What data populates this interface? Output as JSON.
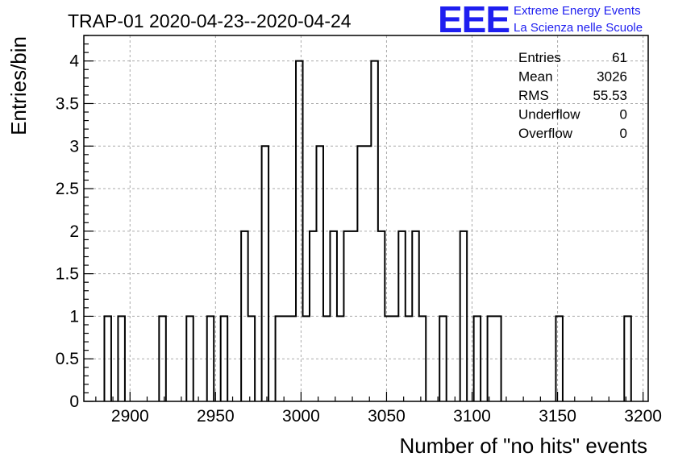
{
  "chart_data": {
    "type": "histogram",
    "title": "TRAP-01 2020-04-23--2020-04-24",
    "xlabel": "Number of \"no hits\" events",
    "ylabel": "Entries/bin",
    "xlim": [
      2873,
      3203
    ],
    "ylim": [
      0,
      4.3
    ],
    "bin_width": 4,
    "x_ticks": [
      2900,
      2950,
      3000,
      3050,
      3100,
      3150,
      3200
    ],
    "y_ticks": [
      0,
      0.5,
      1,
      1.5,
      2,
      2.5,
      3,
      3.5,
      4
    ],
    "y_tick_labels": [
      "0",
      "0.5",
      "1",
      "1.5",
      "2",
      "2.5",
      "3",
      "3.5",
      "4"
    ],
    "grid": true,
    "bins": [
      {
        "x": 2885,
        "count": 1
      },
      {
        "x": 2893,
        "count": 1
      },
      {
        "x": 2917,
        "count": 1
      },
      {
        "x": 2933,
        "count": 1
      },
      {
        "x": 2945,
        "count": 1
      },
      {
        "x": 2953,
        "count": 1
      },
      {
        "x": 2965,
        "count": 2
      },
      {
        "x": 2969,
        "count": 1
      },
      {
        "x": 2977,
        "count": 3
      },
      {
        "x": 2985,
        "count": 1
      },
      {
        "x": 2989,
        "count": 1
      },
      {
        "x": 2993,
        "count": 1
      },
      {
        "x": 2997,
        "count": 4
      },
      {
        "x": 3001,
        "count": 1
      },
      {
        "x": 3005,
        "count": 2
      },
      {
        "x": 3009,
        "count": 3
      },
      {
        "x": 3013,
        "count": 1
      },
      {
        "x": 3017,
        "count": 2
      },
      {
        "x": 3021,
        "count": 1
      },
      {
        "x": 3025,
        "count": 2
      },
      {
        "x": 3029,
        "count": 2
      },
      {
        "x": 3033,
        "count": 3
      },
      {
        "x": 3037,
        "count": 3
      },
      {
        "x": 3041,
        "count": 4
      },
      {
        "x": 3045,
        "count": 2
      },
      {
        "x": 3049,
        "count": 1
      },
      {
        "x": 3053,
        "count": 1
      },
      {
        "x": 3057,
        "count": 2
      },
      {
        "x": 3061,
        "count": 1
      },
      {
        "x": 3065,
        "count": 2
      },
      {
        "x": 3069,
        "count": 1
      },
      {
        "x": 3081,
        "count": 1
      },
      {
        "x": 3093,
        "count": 2
      },
      {
        "x": 3101,
        "count": 1
      },
      {
        "x": 3109,
        "count": 1
      },
      {
        "x": 3113,
        "count": 1
      },
      {
        "x": 3149,
        "count": 1
      },
      {
        "x": 3189,
        "count": 1
      }
    ],
    "stats": [
      {
        "label": "Entries",
        "value": "61"
      },
      {
        "label": "Mean",
        "value": "3026"
      },
      {
        "label": "RMS",
        "value": "55.53"
      },
      {
        "label": "Underflow",
        "value": "0"
      },
      {
        "label": "Overflow",
        "value": "0"
      }
    ],
    "line_color": "#000000",
    "grid_color": "#aaaaaa"
  },
  "logo": {
    "mark": "EEE",
    "line1": "Extreme Energy Events",
    "line2": "La Scienza nelle Scuole",
    "color": "#1e1ef0"
  }
}
